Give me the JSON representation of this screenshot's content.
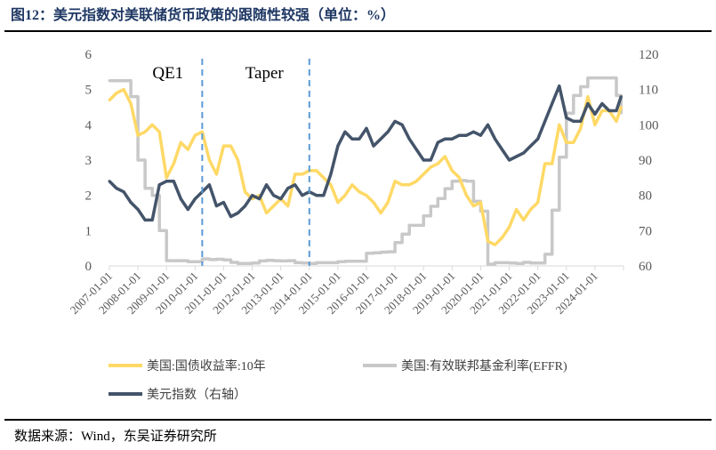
{
  "title": "图12：美元指数对美联储货币政策的跟随性较强（单位：%）",
  "source": "数据来源：Wind，东吴证券研究所",
  "chart_data": {
    "type": "line",
    "title": "图12：美元指数对美联储货币政策的跟随性较强（单位：%）",
    "x_range": [
      "2007-01-01",
      "2025-01-01"
    ],
    "x_tick_labels": [
      "2007-01-01",
      "2008-01-01",
      "2009-01-01",
      "2010-01-01",
      "2011-01-01",
      "2012-01-01",
      "2013-01-01",
      "2014-01-01",
      "2015-01-01",
      "2016-01-01",
      "2017-01-01",
      "2018-01-01",
      "2019-01-01",
      "2020-01-01",
      "2021-01-01",
      "2022-01-01",
      "2023-01-01",
      "2024-01-01"
    ],
    "y_left": {
      "range": [
        0,
        6
      ],
      "ticks": [
        "0",
        "1",
        "2",
        "3",
        "4",
        "5",
        "6"
      ]
    },
    "y_right": {
      "range": [
        60,
        120
      ],
      "ticks": [
        "60",
        "70",
        "80",
        "90",
        "100",
        "110",
        "120"
      ]
    },
    "grid": false,
    "legend_placement": "bottom",
    "annotations": [
      {
        "label": "QE1",
        "date": "2010-04-01"
      },
      {
        "label": "Taper",
        "date": "2014-01-01"
      }
    ],
    "annotation_line_color": "#5B9BD5",
    "x": [
      "2007-01",
      "2007-04",
      "2007-07",
      "2007-10",
      "2008-01",
      "2008-04",
      "2008-07",
      "2008-10",
      "2009-01",
      "2009-04",
      "2009-07",
      "2009-10",
      "2010-01",
      "2010-04",
      "2010-07",
      "2010-10",
      "2011-01",
      "2011-04",
      "2011-07",
      "2011-10",
      "2012-01",
      "2012-04",
      "2012-07",
      "2012-10",
      "2013-01",
      "2013-04",
      "2013-07",
      "2013-10",
      "2014-01",
      "2014-04",
      "2014-07",
      "2014-10",
      "2015-01",
      "2015-04",
      "2015-07",
      "2015-10",
      "2016-01",
      "2016-04",
      "2016-07",
      "2016-10",
      "2017-01",
      "2017-04",
      "2017-07",
      "2017-10",
      "2018-01",
      "2018-04",
      "2018-07",
      "2018-10",
      "2019-01",
      "2019-04",
      "2019-07",
      "2019-10",
      "2020-01",
      "2020-04",
      "2020-07",
      "2020-10",
      "2021-01",
      "2021-04",
      "2021-07",
      "2021-10",
      "2022-01",
      "2022-04",
      "2022-07",
      "2022-10",
      "2023-01",
      "2023-04",
      "2023-07",
      "2023-10",
      "2024-01",
      "2024-04",
      "2024-07",
      "2024-10",
      "2024-12"
    ],
    "series": [
      {
        "name": "美国:国债收益率:10年",
        "axis": "left",
        "color": "#FFD966",
        "values": [
          4.7,
          4.9,
          5.0,
          4.6,
          3.7,
          3.8,
          4.0,
          3.8,
          2.5,
          2.9,
          3.5,
          3.3,
          3.7,
          3.8,
          3.0,
          2.6,
          3.4,
          3.4,
          3.0,
          2.1,
          1.9,
          2.0,
          1.5,
          1.7,
          1.9,
          1.7,
          2.6,
          2.6,
          2.7,
          2.7,
          2.5,
          2.3,
          1.8,
          2.0,
          2.3,
          2.1,
          2.0,
          1.8,
          1.5,
          1.8,
          2.4,
          2.3,
          2.3,
          2.4,
          2.6,
          2.8,
          2.9,
          3.1,
          2.7,
          2.5,
          2.0,
          1.7,
          1.8,
          0.7,
          0.6,
          0.8,
          1.1,
          1.6,
          1.3,
          1.6,
          1.8,
          2.9,
          2.9,
          4.0,
          3.5,
          3.5,
          3.9,
          4.8,
          4.0,
          4.4,
          4.4,
          4.1,
          4.5
        ]
      },
      {
        "name": "美国:有效联邦基金利率(EFFR)",
        "axis": "left",
        "color": "#C8C8C8",
        "values": [
          5.25,
          5.25,
          5.25,
          4.8,
          3.0,
          2.2,
          2.0,
          1.0,
          0.15,
          0.15,
          0.15,
          0.12,
          0.12,
          0.2,
          0.18,
          0.19,
          0.17,
          0.1,
          0.07,
          0.07,
          0.08,
          0.14,
          0.16,
          0.15,
          0.14,
          0.15,
          0.09,
          0.08,
          0.07,
          0.09,
          0.09,
          0.09,
          0.12,
          0.13,
          0.13,
          0.13,
          0.36,
          0.37,
          0.39,
          0.4,
          0.66,
          0.9,
          1.15,
          1.15,
          1.42,
          1.69,
          1.91,
          2.19,
          2.4,
          2.42,
          2.4,
          1.83,
          1.55,
          0.05,
          0.09,
          0.09,
          0.08,
          0.07,
          0.1,
          0.08,
          0.08,
          0.33,
          1.58,
          3.08,
          4.33,
          4.83,
          5.08,
          5.33,
          5.33,
          5.33,
          5.33,
          4.83,
          4.33
        ]
      },
      {
        "name": "美元指数（右轴）",
        "axis": "right",
        "color": "#44546A",
        "values": [
          84,
          82,
          81,
          78,
          76,
          73,
          73,
          83,
          84,
          84,
          79,
          76,
          79,
          81,
          83,
          77,
          78,
          74,
          75,
          77,
          80,
          79,
          83,
          80,
          79,
          82,
          83,
          80,
          81,
          80,
          80,
          86,
          94,
          98,
          96,
          96,
          99,
          94,
          96,
          98,
          101,
          100,
          96,
          93,
          90,
          90,
          95,
          96,
          96,
          97,
          97,
          98,
          97,
          100,
          96,
          93,
          90,
          91,
          92,
          94,
          96,
          101,
          106,
          111,
          102,
          101,
          101,
          106,
          103,
          106,
          104,
          104,
          108
        ]
      }
    ]
  }
}
